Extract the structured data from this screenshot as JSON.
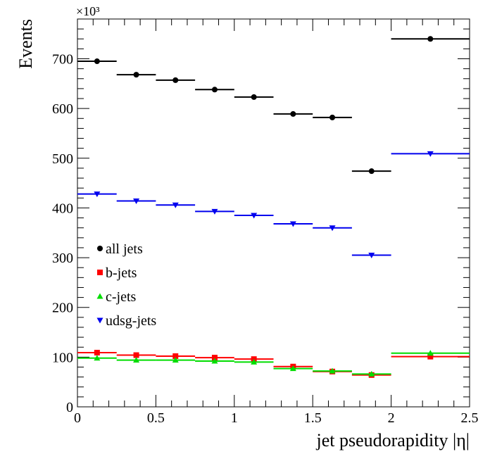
{
  "chart_data": {
    "type": "scatter",
    "xlabel": "jet pseudorapidity |η|",
    "ylabel": "Events",
    "y_multiplier_label": "×10³",
    "xlim": [
      0,
      2.5
    ],
    "ylim": [
      0,
      780
    ],
    "x_ticks": [
      0,
      0.5,
      1,
      1.5,
      2,
      2.5
    ],
    "x_tick_labels": [
      "0",
      "0.5",
      "1",
      "1.5",
      "2",
      "2.5"
    ],
    "y_ticks": [
      0,
      100,
      200,
      300,
      400,
      500,
      600,
      700
    ],
    "y_tick_labels": [
      "0",
      "100",
      "200",
      "300",
      "400",
      "500",
      "600",
      "700"
    ],
    "grid": false,
    "legend_placement": "left-center",
    "bin_edges": [
      0,
      0.25,
      0.5,
      0.75,
      1.0,
      1.25,
      1.5,
      1.75,
      2.0,
      2.5
    ],
    "bin_centers": [
      0.125,
      0.375,
      0.625,
      0.875,
      1.125,
      1.375,
      1.625,
      1.875,
      2.25
    ],
    "series": [
      {
        "name": "all jets",
        "color": "#000000",
        "marker": "circle",
        "values": [
          695,
          668,
          657,
          638,
          623,
          589,
          582,
          474,
          740
        ]
      },
      {
        "name": "b-jets",
        "color": "#ff0000",
        "marker": "square",
        "values": [
          109,
          104,
          102,
          99,
          96,
          81,
          71,
          64,
          101
        ]
      },
      {
        "name": "c-jets",
        "color": "#00dd00",
        "marker": "triangle-up",
        "values": [
          98,
          94,
          94,
          92,
          90,
          77,
          72,
          66,
          108
        ]
      },
      {
        "name": "udsg-jets",
        "color": "#0000ee",
        "marker": "triangle-down",
        "values": [
          428,
          414,
          406,
          393,
          385,
          368,
          360,
          305,
          509
        ]
      }
    ]
  }
}
